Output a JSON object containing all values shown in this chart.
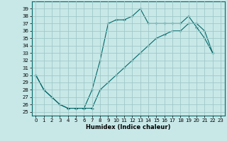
{
  "title": "",
  "xlabel": "Humidex (Indice chaleur)",
  "bg_color": "#c8e8e8",
  "grid_color": "#a0c8c8",
  "line_color": "#006868",
  "xlim": [
    -0.5,
    23.5
  ],
  "ylim": [
    24.5,
    40.0
  ],
  "xticks": [
    0,
    1,
    2,
    3,
    4,
    5,
    6,
    7,
    8,
    9,
    10,
    11,
    12,
    13,
    14,
    15,
    16,
    17,
    18,
    19,
    20,
    21,
    22,
    23
  ],
  "yticks": [
    25,
    26,
    27,
    28,
    29,
    30,
    31,
    32,
    33,
    34,
    35,
    36,
    37,
    38,
    39
  ],
  "line1_x": [
    0,
    1,
    2,
    3,
    4,
    5,
    6,
    7,
    8,
    9,
    10,
    11,
    12,
    13,
    14,
    15,
    16,
    17,
    18,
    19,
    20,
    21,
    22
  ],
  "line1_y": [
    30,
    28,
    27,
    26,
    25.5,
    25.5,
    25.5,
    28,
    32,
    37,
    37.5,
    37.5,
    38,
    39,
    37,
    37,
    37,
    37,
    37,
    38,
    36.5,
    35,
    33
  ],
  "line2_x": [
    0,
    1,
    2,
    3,
    4,
    5,
    6,
    7,
    8,
    9,
    10,
    11,
    12,
    13,
    14,
    15,
    16,
    17,
    18,
    19,
    20,
    21,
    22
  ],
  "line2_y": [
    30,
    28,
    27,
    26,
    25.5,
    25.5,
    25.5,
    25.5,
    28,
    29,
    30,
    31,
    32,
    33,
    34,
    35,
    35.5,
    36,
    36,
    37,
    37,
    36,
    33
  ],
  "xlabel_fontsize": 6,
  "tick_fontsize": 5
}
